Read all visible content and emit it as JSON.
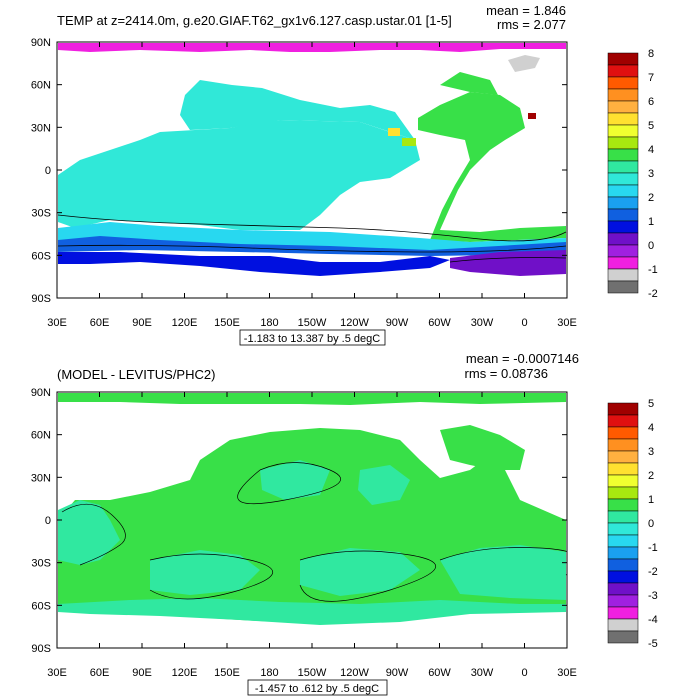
{
  "chart_data": [
    {
      "type": "heatmap",
      "title": "TEMP at z=2414.0m, g.e20.GIAF.T62_gx1v6.127.casp.ustar.01 [1-5]",
      "stats": [
        "mean = 1.846",
        "rms = 2.077"
      ],
      "yticks": [
        "90N",
        "60N",
        "30N",
        "0",
        "30S",
        "60S",
        "90S"
      ],
      "xticks": [
        "30E",
        "60E",
        "90E",
        "120E",
        "150E",
        "180",
        "150W",
        "120W",
        "90W",
        "60W",
        "30W",
        "0",
        "30E"
      ],
      "xlim": [
        30,
        390
      ],
      "ylim": [
        -90,
        90
      ],
      "range_note": "-1.183 to 13.387 by .5 degC",
      "colorbar_levels": [
        "8",
        "7",
        "6",
        "5",
        "4",
        "3",
        "2",
        "1",
        "0",
        "-1",
        "-2"
      ],
      "colorbar_colors": [
        "#a00000",
        "#e01010",
        "#ff5a00",
        "#ff9020",
        "#ffb040",
        "#ffe030",
        "#f0ff30",
        "#a8e810",
        "#38e048",
        "#30e8a0",
        "#30e8d8",
        "#28d8f0",
        "#1aa0f0",
        "#1060e0",
        "#0010e0",
        "#7010c8",
        "#a020e0",
        "#f020e0",
        "#d0d0d0",
        "#707070"
      ]
    },
    {
      "type": "heatmap",
      "title": "(MODEL - LEVITUS/PHC2)",
      "stats": [
        "mean = -0.0007146",
        "rms = 0.08736"
      ],
      "yticks": [
        "90N",
        "60N",
        "30N",
        "0",
        "30S",
        "60S",
        "90S"
      ],
      "xticks": [
        "30E",
        "60E",
        "90E",
        "120E",
        "150E",
        "180",
        "150W",
        "120W",
        "90W",
        "60W",
        "30W",
        "0",
        "30E"
      ],
      "xlim": [
        30,
        390
      ],
      "ylim": [
        -90,
        90
      ],
      "range_note": "-1.457 to .612 by .5 degC",
      "colorbar_levels": [
        "5",
        "4",
        "3",
        "2",
        "1",
        "0",
        "-1",
        "-2",
        "-3",
        "-4",
        "-5"
      ],
      "colorbar_colors": [
        "#a00000",
        "#e01010",
        "#ff5a00",
        "#ff9020",
        "#ffb040",
        "#ffe030",
        "#f0ff30",
        "#a8e810",
        "#38e048",
        "#30e8a0",
        "#30e8d8",
        "#28d8f0",
        "#1aa0f0",
        "#1060e0",
        "#0010e0",
        "#7010c8",
        "#a020e0",
        "#f020e0",
        "#d0d0d0",
        "#707070"
      ]
    }
  ]
}
